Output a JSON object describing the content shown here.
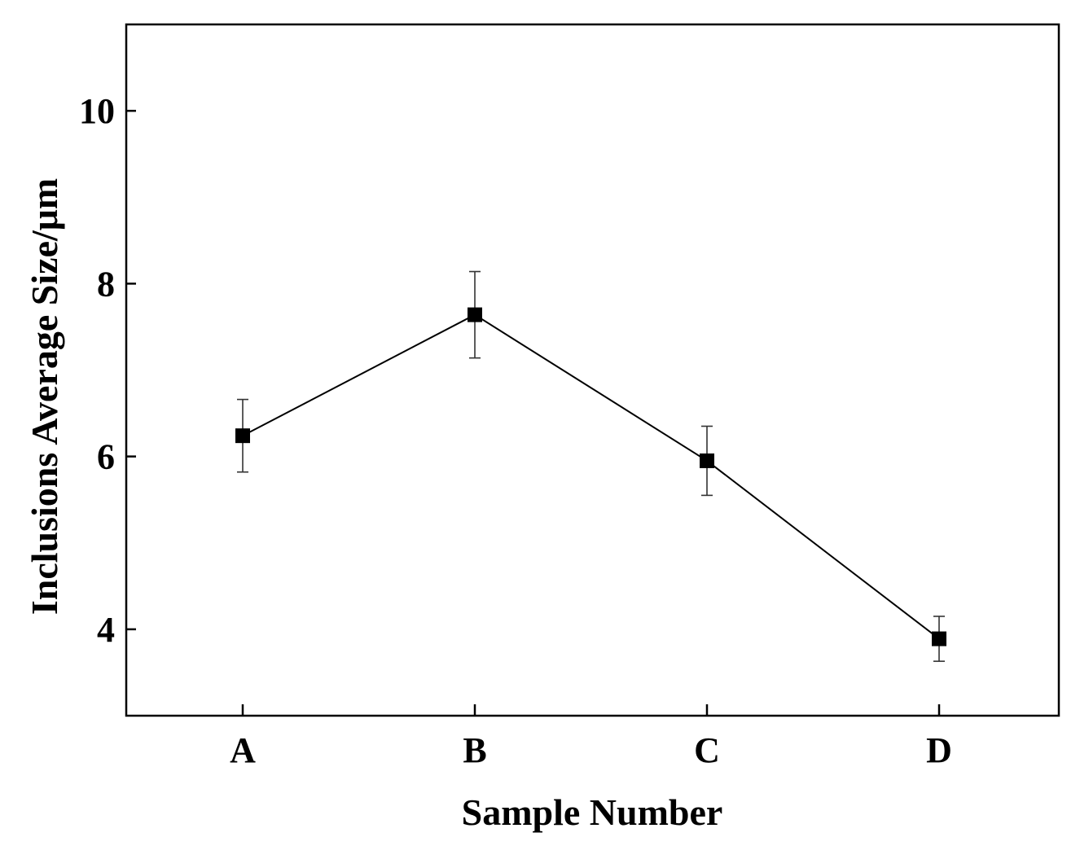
{
  "chart_data": {
    "type": "line",
    "categories": [
      "A",
      "B",
      "C",
      "D"
    ],
    "series": [
      {
        "values": [
          6.24,
          7.64,
          5.95,
          3.89
        ],
        "error": [
          0.42,
          0.5,
          0.4,
          0.26
        ],
        "marker": "square",
        "color": "#000000"
      }
    ],
    "xlabel": "Sample Number",
    "ylabel": "Inclusions Average Size/μm",
    "ylim": [
      3,
      11
    ],
    "yticks": [
      4,
      6,
      8,
      10
    ],
    "grid": false
  }
}
